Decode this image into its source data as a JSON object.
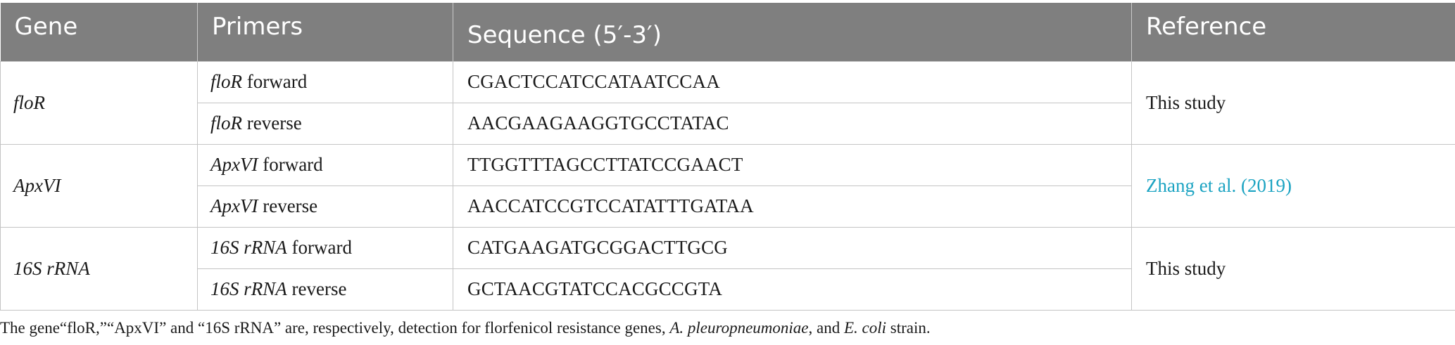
{
  "table": {
    "headers": {
      "gene": "Gene",
      "primers": "Primers",
      "sequence": "Sequence (5′-3′)",
      "reference": "Reference"
    },
    "groups": [
      {
        "gene": "floR",
        "reference": "This study",
        "rows": [
          {
            "primer_gene": "floR",
            "primer_dir": " forward",
            "sequence": "CGACTCCATCCATAATCCAA"
          },
          {
            "primer_gene": "floR",
            "primer_dir": " reverse",
            "sequence": "AACGAAGAAGGTGCCTATAC"
          }
        ]
      },
      {
        "gene": "ApxVI",
        "reference": "Zhang et al. (2019)",
        "rows": [
          {
            "primer_gene": "ApxVI",
            "primer_dir": " forward",
            "sequence": "TTGGTTTAGCCTTATCCGAACT"
          },
          {
            "primer_gene": "ApxVI",
            "primer_dir": " reverse",
            "sequence": "AACCATCCGTCCATATTTGATAA"
          }
        ]
      },
      {
        "gene": "16S rRNA",
        "reference": "This study",
        "rows": [
          {
            "primer_gene": "16S rRNA",
            "primer_dir": " forward",
            "sequence": "CATGAAGATGCGGACTTGCG"
          },
          {
            "primer_gene": "16S rRNA",
            "primer_dir": " reverse",
            "sequence": "GCTAACGTATCCACGCCGTA"
          }
        ]
      }
    ],
    "colors": {
      "header_bg": "#7f7f7f",
      "header_text": "#ffffff",
      "link": "#1ba3c2",
      "border": "#c4c4c4"
    }
  },
  "footnote": {
    "part1": "The gene“floR,”“ApxVI” and “16S rRNA” are, respectively, detection for florfenicol resistance genes, ",
    "species1": "A. pleuropneumoniae",
    "part2": ", and ",
    "species2": "E. coli",
    "part3": " strain."
  }
}
